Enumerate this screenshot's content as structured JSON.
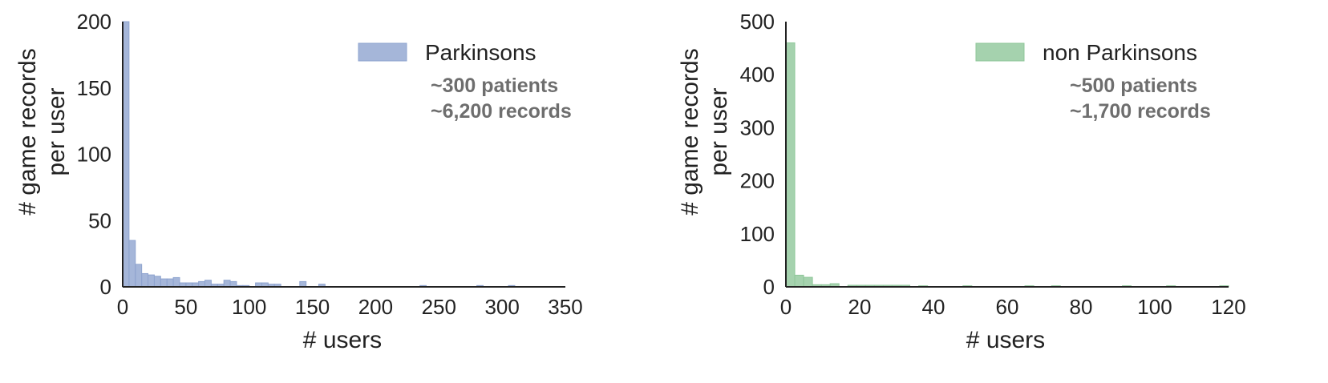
{
  "chart_data": [
    {
      "type": "bar",
      "xlabel": "# users",
      "ylabel_lines": [
        "# game records",
        "per user"
      ],
      "xlim": [
        0,
        350
      ],
      "ylim": [
        0,
        200
      ],
      "xticks": [
        0,
        50,
        100,
        150,
        200,
        250,
        300,
        350
      ],
      "yticks": [
        0,
        50,
        100,
        150,
        200
      ],
      "bin_width": 5,
      "grid": false,
      "legend_position": "top-right",
      "color": "#8fa4cf",
      "series": [
        {
          "name": "Parkinsons",
          "bins": [
            {
              "x": 0,
              "y": 200
            },
            {
              "x": 5,
              "y": 35
            },
            {
              "x": 10,
              "y": 17
            },
            {
              "x": 15,
              "y": 10
            },
            {
              "x": 20,
              "y": 9
            },
            {
              "x": 25,
              "y": 8
            },
            {
              "x": 30,
              "y": 6
            },
            {
              "x": 35,
              "y": 6
            },
            {
              "x": 40,
              "y": 7
            },
            {
              "x": 45,
              "y": 3
            },
            {
              "x": 50,
              "y": 3
            },
            {
              "x": 55,
              "y": 3
            },
            {
              "x": 60,
              "y": 4
            },
            {
              "x": 65,
              "y": 5
            },
            {
              "x": 70,
              "y": 2
            },
            {
              "x": 75,
              "y": 2
            },
            {
              "x": 80,
              "y": 5
            },
            {
              "x": 85,
              "y": 4
            },
            {
              "x": 90,
              "y": 1
            },
            {
              "x": 95,
              "y": 1
            },
            {
              "x": 105,
              "y": 3
            },
            {
              "x": 110,
              "y": 3
            },
            {
              "x": 115,
              "y": 2
            },
            {
              "x": 120,
              "y": 2
            },
            {
              "x": 140,
              "y": 4
            },
            {
              "x": 155,
              "y": 2
            },
            {
              "x": 235,
              "y": 1
            },
            {
              "x": 280,
              "y": 1
            },
            {
              "x": 305,
              "y": 1
            }
          ]
        }
      ],
      "annotations": [
        "~300 patients",
        "~6,200 records"
      ]
    },
    {
      "type": "bar",
      "xlabel": "# users",
      "ylabel_lines": [
        "# game records",
        "per user"
      ],
      "xlim": [
        0,
        120
      ],
      "ylim": [
        0,
        500
      ],
      "xticks": [
        0,
        20,
        40,
        60,
        80,
        100,
        120
      ],
      "yticks": [
        0,
        100,
        200,
        300,
        400,
        500
      ],
      "bin_width": 2.4,
      "grid": false,
      "legend_position": "top-right",
      "color": "#8fc79a",
      "series": [
        {
          "name": "non Parkinsons",
          "bins": [
            {
              "x": 0,
              "y": 460
            },
            {
              "x": 2.4,
              "y": 22
            },
            {
              "x": 4.8,
              "y": 18
            },
            {
              "x": 7.2,
              "y": 4
            },
            {
              "x": 9.6,
              "y": 4
            },
            {
              "x": 12,
              "y": 6
            },
            {
              "x": 16.8,
              "y": 3
            },
            {
              "x": 19.2,
              "y": 3
            },
            {
              "x": 21.6,
              "y": 3
            },
            {
              "x": 24,
              "y": 3
            },
            {
              "x": 26.4,
              "y": 3
            },
            {
              "x": 28.8,
              "y": 3
            },
            {
              "x": 31.2,
              "y": 3
            },
            {
              "x": 36,
              "y": 2
            },
            {
              "x": 48,
              "y": 2
            },
            {
              "x": 64.8,
              "y": 2
            },
            {
              "x": 72,
              "y": 2
            },
            {
              "x": 91.2,
              "y": 2
            },
            {
              "x": 103.2,
              "y": 2
            },
            {
              "x": 117.6,
              "y": 2
            }
          ]
        }
      ],
      "annotations": [
        "~500 patients",
        "~1,700 records"
      ]
    }
  ]
}
